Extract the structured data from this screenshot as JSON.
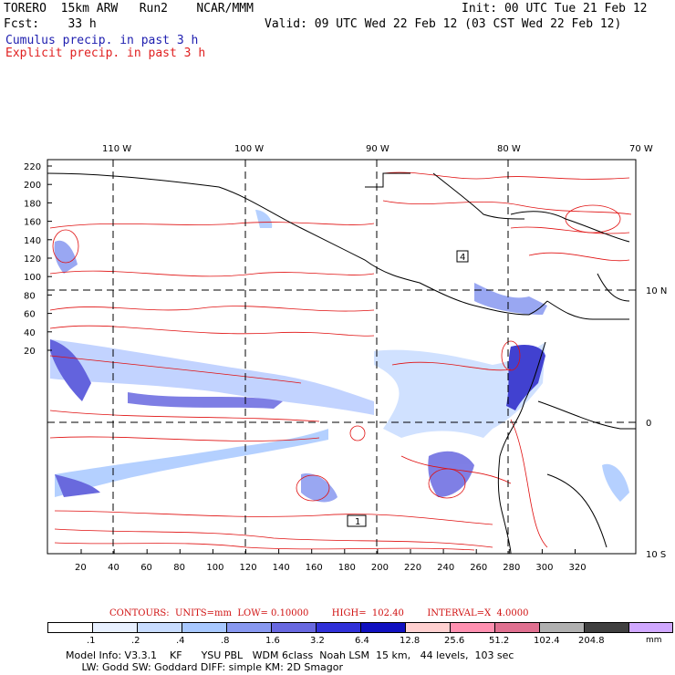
{
  "header": {
    "model": "TORERO  15km ARW   Run2    NCAR/MMM",
    "init": "Init: 00 UTC Tue 21 Feb 12",
    "fcst": "Fcst:    33 h",
    "valid": "Valid: 09 UTC Wed 22 Feb 12 (03 CST Wed 22 Feb 12)",
    "cumulus": "Cumulus precip. in past 3 h",
    "explicit": "Explicit precip. in past 3 h"
  },
  "map": {
    "lon_labels": [
      "110 W",
      "100 W",
      "90 W",
      "80 W",
      "70 W"
    ],
    "lat_labels_right": [
      "10 N",
      "0",
      "10 S"
    ],
    "y_ticks": [
      "220",
      "200",
      "180",
      "160",
      "140",
      "120",
      "100",
      "80",
      "60",
      "40",
      "20"
    ],
    "x_ticks": [
      "20",
      "40",
      "60",
      "80",
      "100",
      "120",
      "140",
      "160",
      "180",
      "200",
      "220",
      "240",
      "260",
      "280",
      "300",
      "320"
    ],
    "markers": [
      {
        "label": "4"
      },
      {
        "label": "1"
      }
    ],
    "colors": {
      "cumulus": "#3030d0",
      "explicit": "#e01010",
      "coast": "#000000"
    }
  },
  "contours_line": "CONTOURS:  UNITS=mm  LOW= 0.10000        HIGH=  102.40        INTERVAL=X  4.0000",
  "legend": {
    "colors": [
      "#ffffff",
      "#e8f0ff",
      "#c8dcff",
      "#a8c8ff",
      "#8898f0",
      "#6868e0",
      "#3030d8",
      "#1010c0",
      "#ffd0d0",
      "#ff90b0",
      "#e07090",
      "#b0b0b0",
      "#404040",
      "#d0a8ff"
    ],
    "labels": [
      ".1",
      ".2",
      ".4",
      ".8",
      "1.6",
      "3.2",
      "6.4",
      "12.8",
      "25.6",
      "51.2",
      "102.4",
      "204.8"
    ],
    "unit": "mm"
  },
  "footer": {
    "line1": "Model Info: V3.3.1    KF      YSU PBL   WDM 6class  Noah LSM  15 km,   44 levels,  103 sec",
    "line2": "     LW: Godd SW: Goddard DIFF: simple KM: 2D Smagor"
  }
}
